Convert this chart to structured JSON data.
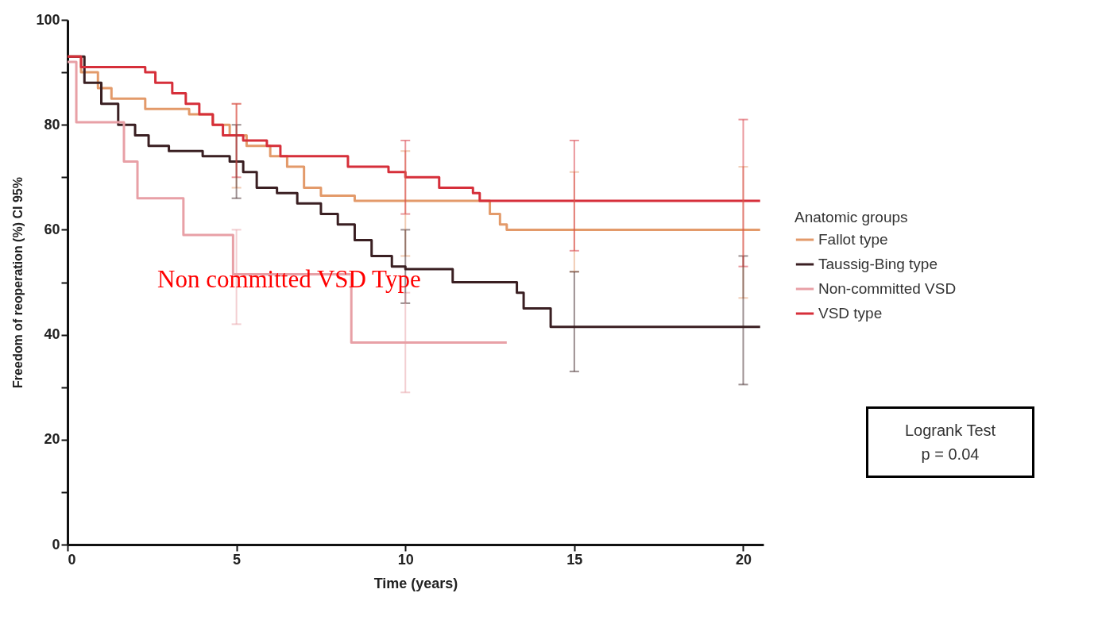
{
  "chart_data": {
    "type": "step",
    "xlabel": "Time (years)",
    "ylabel": "Freedom of reoperation (%)  CI 95%",
    "legend_title": "Anatomic groups",
    "xlim": [
      0,
      20.6
    ],
    "ylim": [
      0,
      100
    ],
    "xticks": [
      0,
      5,
      10,
      15,
      20
    ],
    "yticks": [
      0,
      {
        "value": 10,
        "label": null
      },
      20,
      {
        "value": 30,
        "label": null
      },
      40,
      {
        "value": 50,
        "label": null
      },
      60,
      {
        "value": 70,
        "label": null
      },
      80,
      {
        "value": 90,
        "label": null
      },
      100
    ],
    "legend": "right",
    "grid": false,
    "series": [
      {
        "name": "Fallot type",
        "color": "#e39a6a",
        "x": [
          0,
          0.4,
          0.9,
          1.3,
          2.3,
          3.6,
          4.3,
          4.8,
          5,
          5.3,
          6,
          6.5,
          7,
          7.5,
          8.5,
          10,
          12.5,
          12.8,
          13,
          15,
          20,
          20.5
        ],
        "values": [
          93,
          90,
          87,
          85,
          83,
          82,
          80,
          78,
          78,
          76,
          74,
          72,
          68,
          66.5,
          65.5,
          65.5,
          63,
          61,
          60,
          60,
          60,
          60
        ],
        "errors": [
          null,
          null,
          null,
          null,
          null,
          null,
          null,
          null,
          [
            68,
            84
          ],
          null,
          null,
          null,
          null,
          null,
          null,
          [
            55,
            75
          ],
          null,
          null,
          null,
          [
            52,
            71
          ],
          [
            47,
            72
          ],
          null
        ]
      },
      {
        "name": "Taussig-Bing type",
        "color": "#3a1f22",
        "x": [
          0,
          0.5,
          1,
          1.5,
          2,
          2.4,
          3,
          4,
          4.8,
          5,
          5.2,
          5.6,
          6.2,
          6.8,
          7.5,
          8,
          8.5,
          9,
          9.6,
          10,
          11.4,
          13.3,
          13.5,
          14.3,
          15,
          20,
          20.5
        ],
        "values": [
          93,
          88,
          84,
          80,
          78,
          76,
          75,
          74,
          73,
          73,
          71,
          68,
          67,
          65,
          63,
          61,
          58,
          55,
          53,
          52.5,
          50,
          48,
          45,
          41.5,
          41.5,
          41.5,
          41.5
        ],
        "errors": [
          null,
          null,
          null,
          null,
          null,
          null,
          null,
          null,
          null,
          [
            66,
            80
          ],
          null,
          null,
          null,
          null,
          null,
          null,
          null,
          null,
          null,
          [
            46,
            60
          ],
          null,
          null,
          null,
          null,
          [
            33,
            52
          ],
          [
            30.5,
            55
          ],
          null
        ]
      },
      {
        "name": "Non-committed VSD",
        "color": "#e8a0a6",
        "x": [
          0,
          0.26,
          1.67,
          2.07,
          3.43,
          4.9,
          5,
          8.4,
          10,
          13
        ],
        "values": [
          92,
          80.5,
          73,
          66,
          59,
          51.5,
          51.5,
          38.5,
          38.5,
          38.5
        ],
        "errors": [
          null,
          null,
          null,
          null,
          null,
          null,
          [
            42,
            60
          ],
          null,
          [
            29,
            48
          ],
          null
        ]
      },
      {
        "name": "VSD type",
        "color": "#d62f3a",
        "x": [
          0,
          0.4,
          2.3,
          2.6,
          3.1,
          3.5,
          3.9,
          4.3,
          4.6,
          5,
          5.2,
          5.9,
          6.3,
          8.3,
          9.5,
          10,
          11,
          12,
          12.2,
          15,
          20,
          20.5
        ],
        "values": [
          93,
          91,
          90,
          88,
          86,
          84,
          82,
          80,
          78,
          78,
          77,
          76,
          74,
          72,
          71,
          70,
          68,
          67,
          65.5,
          65.5,
          65.5,
          65.5
        ],
        "errors": [
          null,
          null,
          null,
          null,
          null,
          null,
          null,
          null,
          null,
          [
            70,
            84
          ],
          null,
          null,
          null,
          null,
          null,
          [
            63,
            77
          ],
          null,
          null,
          null,
          [
            56,
            77
          ],
          [
            53,
            81
          ],
          null
        ]
      }
    ],
    "annotations": [
      "Non committed VSD Type",
      "Logrank Test",
      "p = 0.04"
    ]
  }
}
